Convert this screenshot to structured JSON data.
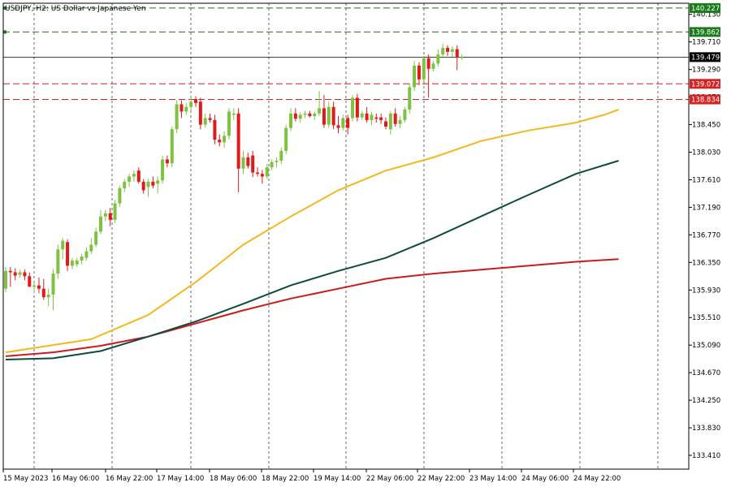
{
  "chart_data": {
    "type": "candlestick",
    "title": "USDJPY, H2:  US Dollar vs Japanese Yen",
    "ylim": [
      133.2,
      140.3
    ],
    "yticks": [
      "140.130",
      "139.710",
      "139.290",
      "138.870",
      "138.450",
      "138.030",
      "137.610",
      "137.190",
      "136.770",
      "136.350",
      "135.930",
      "135.510",
      "135.090",
      "134.670",
      "134.250",
      "133.830",
      "133.410"
    ],
    "xticks": [
      "15 May 2023",
      "16 May 06:00",
      "16 May 22:00",
      "17 May 14:00",
      "18 May 06:00",
      "18 May 22:00",
      "19 May 14:00",
      "22 May 06:00",
      "22 May 22:00",
      "23 May 14:00",
      "24 May 06:00",
      "24 May 22:00"
    ],
    "grid": true,
    "current_price": {
      "label": "139.479",
      "value": 139.479,
      "color": "#000000"
    },
    "levels": [
      {
        "label": "140.227",
        "value": 140.227,
        "color": "#1b7a1b",
        "style": "dashed"
      },
      {
        "label": "139.862",
        "value": 139.862,
        "color": "#1b7a1b",
        "style": "dashed"
      },
      {
        "label": "139.072",
        "value": 139.072,
        "color": "#d42424",
        "style": "dashed"
      },
      {
        "label": "138.834",
        "value": 138.834,
        "color": "#d42424",
        "style": "dashed"
      }
    ],
    "colors": {
      "bull": "#7fc241",
      "bear": "#e0191b",
      "ma_fast": "#f2b81d",
      "ma_mid": "#0f4a3e",
      "ma_slow": "#cc1b1b"
    },
    "candles": [
      {
        "o": 135.95,
        "h": 136.28,
        "l": 135.9,
        "c": 136.22
      },
      {
        "o": 136.22,
        "h": 136.28,
        "l": 135.98,
        "c": 136.2
      },
      {
        "o": 136.2,
        "h": 136.26,
        "l": 136.08,
        "c": 136.15
      },
      {
        "o": 136.16,
        "h": 136.24,
        "l": 136.12,
        "c": 136.2
      },
      {
        "o": 136.2,
        "h": 136.24,
        "l": 136.08,
        "c": 136.14
      },
      {
        "o": 136.14,
        "h": 136.2,
        "l": 135.98,
        "c": 135.98
      },
      {
        "o": 135.98,
        "h": 136.05,
        "l": 135.88,
        "c": 136.0
      },
      {
        "o": 136.0,
        "h": 136.12,
        "l": 135.88,
        "c": 135.95
      },
      {
        "o": 135.95,
        "h": 136.1,
        "l": 135.78,
        "c": 135.82
      },
      {
        "o": 135.82,
        "h": 135.95,
        "l": 135.68,
        "c": 135.86
      },
      {
        "o": 135.86,
        "h": 136.25,
        "l": 135.62,
        "c": 136.18
      },
      {
        "o": 136.18,
        "h": 136.62,
        "l": 136.1,
        "c": 136.55
      },
      {
        "o": 136.55,
        "h": 136.72,
        "l": 136.4,
        "c": 136.68
      },
      {
        "o": 136.66,
        "h": 136.7,
        "l": 136.22,
        "c": 136.3
      },
      {
        "o": 136.3,
        "h": 136.42,
        "l": 136.25,
        "c": 136.38
      },
      {
        "o": 136.32,
        "h": 136.42,
        "l": 136.28,
        "c": 136.38
      },
      {
        "o": 136.38,
        "h": 136.48,
        "l": 136.32,
        "c": 136.44
      },
      {
        "o": 136.42,
        "h": 136.58,
        "l": 136.38,
        "c": 136.52
      },
      {
        "o": 136.52,
        "h": 136.72,
        "l": 136.48,
        "c": 136.62
      },
      {
        "o": 136.62,
        "h": 136.88,
        "l": 136.58,
        "c": 136.82
      },
      {
        "o": 136.82,
        "h": 137.15,
        "l": 136.78,
        "c": 137.05
      },
      {
        "o": 137.05,
        "h": 137.15,
        "l": 136.98,
        "c": 137.1
      },
      {
        "o": 137.1,
        "h": 137.18,
        "l": 136.9,
        "c": 137.0
      },
      {
        "o": 137.0,
        "h": 137.3,
        "l": 136.95,
        "c": 137.25
      },
      {
        "o": 137.25,
        "h": 137.52,
        "l": 137.2,
        "c": 137.48
      },
      {
        "o": 137.48,
        "h": 137.62,
        "l": 137.42,
        "c": 137.58
      },
      {
        "o": 137.58,
        "h": 137.7,
        "l": 137.5,
        "c": 137.66
      },
      {
        "o": 137.66,
        "h": 137.75,
        "l": 137.58,
        "c": 137.7
      },
      {
        "o": 137.75,
        "h": 137.8,
        "l": 137.55,
        "c": 137.58
      },
      {
        "o": 137.58,
        "h": 137.62,
        "l": 137.4,
        "c": 137.45
      },
      {
        "o": 137.5,
        "h": 137.62,
        "l": 137.35,
        "c": 137.58
      },
      {
        "o": 137.58,
        "h": 137.66,
        "l": 137.48,
        "c": 137.52
      },
      {
        "o": 137.55,
        "h": 137.66,
        "l": 137.4,
        "c": 137.6
      },
      {
        "o": 137.6,
        "h": 137.98,
        "l": 137.55,
        "c": 137.92
      },
      {
        "o": 137.92,
        "h": 137.98,
        "l": 137.8,
        "c": 137.86
      },
      {
        "o": 137.86,
        "h": 138.42,
        "l": 137.8,
        "c": 138.38
      },
      {
        "o": 138.38,
        "h": 138.82,
        "l": 138.32,
        "c": 138.76
      },
      {
        "o": 138.76,
        "h": 138.82,
        "l": 138.55,
        "c": 138.65
      },
      {
        "o": 138.65,
        "h": 138.78,
        "l": 138.6,
        "c": 138.72
      },
      {
        "o": 138.72,
        "h": 138.88,
        "l": 138.66,
        "c": 138.8
      },
      {
        "o": 138.84,
        "h": 138.88,
        "l": 138.72,
        "c": 138.78
      },
      {
        "o": 138.8,
        "h": 138.86,
        "l": 138.38,
        "c": 138.45
      },
      {
        "o": 138.45,
        "h": 138.62,
        "l": 138.4,
        "c": 138.55
      },
      {
        "o": 138.55,
        "h": 138.62,
        "l": 138.48,
        "c": 138.52
      },
      {
        "o": 138.52,
        "h": 138.6,
        "l": 138.15,
        "c": 138.22
      },
      {
        "o": 138.22,
        "h": 138.3,
        "l": 138.12,
        "c": 138.18
      },
      {
        "o": 138.18,
        "h": 138.35,
        "l": 138.1,
        "c": 138.28
      },
      {
        "o": 138.28,
        "h": 138.7,
        "l": 138.22,
        "c": 138.65
      },
      {
        "o": 138.6,
        "h": 138.7,
        "l": 138.52,
        "c": 138.62
      },
      {
        "o": 138.62,
        "h": 138.7,
        "l": 137.42,
        "c": 137.78
      },
      {
        "o": 137.78,
        "h": 138.05,
        "l": 137.7,
        "c": 137.95
      },
      {
        "o": 137.95,
        "h": 138.02,
        "l": 137.78,
        "c": 137.82
      },
      {
        "o": 137.98,
        "h": 138.05,
        "l": 137.65,
        "c": 137.72
      },
      {
        "o": 137.72,
        "h": 137.8,
        "l": 137.66,
        "c": 137.7
      },
      {
        "o": 137.7,
        "h": 137.76,
        "l": 137.55,
        "c": 137.66
      },
      {
        "o": 137.66,
        "h": 137.85,
        "l": 137.62,
        "c": 137.8
      },
      {
        "o": 137.8,
        "h": 137.92,
        "l": 137.75,
        "c": 137.88
      },
      {
        "o": 137.88,
        "h": 137.95,
        "l": 137.8,
        "c": 137.9
      },
      {
        "o": 137.9,
        "h": 138.1,
        "l": 137.85,
        "c": 138.05
      },
      {
        "o": 138.05,
        "h": 138.45,
        "l": 138.0,
        "c": 138.4
      },
      {
        "o": 138.4,
        "h": 138.7,
        "l": 138.35,
        "c": 138.62
      },
      {
        "o": 138.62,
        "h": 138.7,
        "l": 138.5,
        "c": 138.54
      },
      {
        "o": 138.54,
        "h": 138.64,
        "l": 138.48,
        "c": 138.6
      },
      {
        "o": 138.6,
        "h": 138.66,
        "l": 138.55,
        "c": 138.62
      },
      {
        "o": 138.62,
        "h": 138.66,
        "l": 138.56,
        "c": 138.58
      },
      {
        "o": 138.58,
        "h": 138.65,
        "l": 138.52,
        "c": 138.62
      },
      {
        "o": 138.62,
        "h": 138.96,
        "l": 138.58,
        "c": 138.7
      },
      {
        "o": 138.7,
        "h": 138.9,
        "l": 138.4,
        "c": 138.45
      },
      {
        "o": 138.45,
        "h": 138.8,
        "l": 138.4,
        "c": 138.72
      },
      {
        "o": 138.72,
        "h": 138.8,
        "l": 138.38,
        "c": 138.44
      },
      {
        "o": 138.44,
        "h": 138.58,
        "l": 138.32,
        "c": 138.4
      },
      {
        "o": 138.4,
        "h": 138.6,
        "l": 138.36,
        "c": 138.55
      },
      {
        "o": 138.55,
        "h": 138.6,
        "l": 138.3,
        "c": 138.4
      },
      {
        "o": 138.55,
        "h": 138.9,
        "l": 138.5,
        "c": 138.86
      },
      {
        "o": 138.86,
        "h": 138.92,
        "l": 138.5,
        "c": 138.56
      },
      {
        "o": 138.56,
        "h": 138.66,
        "l": 138.52,
        "c": 138.62
      },
      {
        "o": 138.62,
        "h": 138.72,
        "l": 138.48,
        "c": 138.52
      },
      {
        "o": 138.52,
        "h": 138.64,
        "l": 138.44,
        "c": 138.6
      },
      {
        "o": 138.56,
        "h": 138.62,
        "l": 138.48,
        "c": 138.54
      },
      {
        "o": 138.56,
        "h": 138.62,
        "l": 138.46,
        "c": 138.52
      },
      {
        "o": 138.5,
        "h": 138.56,
        "l": 138.38,
        "c": 138.42
      },
      {
        "o": 138.38,
        "h": 138.66,
        "l": 138.3,
        "c": 138.62
      },
      {
        "o": 138.62,
        "h": 138.7,
        "l": 138.42,
        "c": 138.46
      },
      {
        "o": 138.46,
        "h": 138.58,
        "l": 138.4,
        "c": 138.52
      },
      {
        "o": 138.52,
        "h": 138.72,
        "l": 138.48,
        "c": 138.68
      },
      {
        "o": 138.68,
        "h": 139.08,
        "l": 138.62,
        "c": 139.02
      },
      {
        "o": 139.02,
        "h": 139.42,
        "l": 138.96,
        "c": 139.35
      },
      {
        "o": 139.35,
        "h": 139.4,
        "l": 139.05,
        "c": 139.14
      },
      {
        "o": 139.14,
        "h": 139.5,
        "l": 139.1,
        "c": 139.46
      },
      {
        "o": 139.46,
        "h": 139.52,
        "l": 138.86,
        "c": 139.3
      },
      {
        "o": 139.3,
        "h": 139.42,
        "l": 139.26,
        "c": 139.38
      },
      {
        "o": 139.38,
        "h": 139.6,
        "l": 139.34,
        "c": 139.52
      },
      {
        "o": 139.52,
        "h": 139.68,
        "l": 139.46,
        "c": 139.62
      },
      {
        "o": 139.62,
        "h": 139.66,
        "l": 139.5,
        "c": 139.56
      },
      {
        "o": 139.56,
        "h": 139.64,
        "l": 139.48,
        "c": 139.6
      },
      {
        "o": 139.6,
        "h": 139.66,
        "l": 139.28,
        "c": 139.48
      },
      {
        "o": 139.48,
        "h": 139.52,
        "l": 139.44,
        "c": 139.48
      }
    ],
    "ma_fast": [
      [
        0,
        134.98
      ],
      [
        18,
        135.18
      ],
      [
        30,
        135.55
      ],
      [
        40,
        136.05
      ],
      [
        50,
        136.62
      ],
      [
        60,
        137.05
      ],
      [
        70,
        137.45
      ],
      [
        80,
        137.75
      ],
      [
        90,
        137.95
      ],
      [
        100,
        138.2
      ],
      [
        110,
        138.36
      ],
      [
        120,
        138.48
      ],
      [
        126,
        138.6
      ],
      [
        129,
        138.68
      ]
    ],
    "ma_mid": [
      [
        0,
        134.87
      ],
      [
        10,
        134.89
      ],
      [
        20,
        135.0
      ],
      [
        30,
        135.22
      ],
      [
        40,
        135.45
      ],
      [
        50,
        135.72
      ],
      [
        60,
        136.0
      ],
      [
        70,
        136.22
      ],
      [
        80,
        136.42
      ],
      [
        90,
        136.72
      ],
      [
        100,
        137.05
      ],
      [
        110,
        137.38
      ],
      [
        120,
        137.7
      ],
      [
        129,
        137.9
      ]
    ],
    "ma_slow": [
      [
        0,
        134.92
      ],
      [
        10,
        134.98
      ],
      [
        20,
        135.08
      ],
      [
        30,
        135.22
      ],
      [
        40,
        135.42
      ],
      [
        50,
        135.62
      ],
      [
        60,
        135.8
      ],
      [
        70,
        135.95
      ],
      [
        80,
        136.1
      ],
      [
        90,
        136.18
      ],
      [
        100,
        136.24
      ],
      [
        110,
        136.3
      ],
      [
        120,
        136.36
      ],
      [
        129,
        136.4
      ]
    ]
  }
}
